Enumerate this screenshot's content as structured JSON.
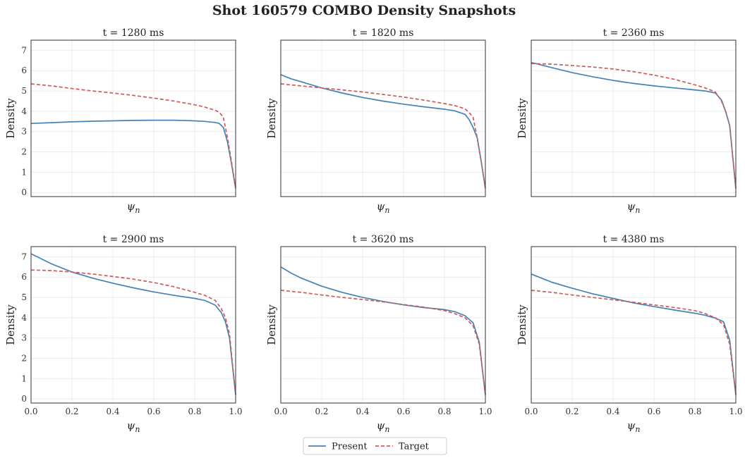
{
  "chart_data": {
    "type": "line",
    "title": "Shot 160579 COMBO Density Snapshots",
    "xlabel": "ψn",
    "ylabel": "Density",
    "xlim": [
      0.0,
      1.0
    ],
    "ylim": [
      -0.2,
      7.5
    ],
    "x_ticks": [
      "0.0",
      "0.2",
      "0.4",
      "0.6",
      "0.8",
      "1.0"
    ],
    "y_ticks": [
      "0",
      "1",
      "2",
      "3",
      "4",
      "5",
      "6",
      "7"
    ],
    "grid": true,
    "legend": {
      "placement": "bottom-center",
      "entries": [
        "Present",
        "Target"
      ]
    },
    "colors": {
      "present": "#4682b4",
      "target": "#cd5c5c"
    },
    "panels": [
      {
        "title": "t = 1280 ms",
        "series": [
          {
            "name": "Present",
            "x": [
              0,
              0.1,
              0.2,
              0.3,
              0.4,
              0.5,
              0.6,
              0.7,
              0.8,
              0.85,
              0.9,
              0.92,
              0.94,
              0.96,
              0.98,
              1.0
            ],
            "y": [
              3.4,
              3.44,
              3.48,
              3.51,
              3.53,
              3.55,
              3.56,
              3.56,
              3.53,
              3.5,
              3.45,
              3.4,
              3.2,
              2.5,
              1.4,
              0.2
            ]
          },
          {
            "name": "Target",
            "x": [
              0,
              0.1,
              0.2,
              0.3,
              0.4,
              0.5,
              0.6,
              0.7,
              0.8,
              0.85,
              0.9,
              0.92,
              0.94,
              0.96,
              0.98,
              1.0
            ],
            "y": [
              5.35,
              5.25,
              5.12,
              5.0,
              4.9,
              4.78,
              4.65,
              4.5,
              4.32,
              4.2,
              4.05,
              3.95,
              3.7,
              2.7,
              1.5,
              0.2
            ]
          }
        ]
      },
      {
        "title": "t = 1820 ms",
        "series": [
          {
            "name": "Present",
            "x": [
              0,
              0.05,
              0.1,
              0.2,
              0.3,
              0.4,
              0.5,
              0.6,
              0.7,
              0.8,
              0.85,
              0.9,
              0.92,
              0.94,
              0.96,
              0.98,
              1.0
            ],
            "y": [
              5.8,
              5.6,
              5.45,
              5.15,
              4.9,
              4.68,
              4.5,
              4.35,
              4.22,
              4.1,
              4.02,
              3.85,
              3.6,
              3.2,
              2.7,
              1.5,
              0.2
            ]
          },
          {
            "name": "Target",
            "x": [
              0,
              0.1,
              0.2,
              0.3,
              0.4,
              0.5,
              0.6,
              0.7,
              0.8,
              0.85,
              0.9,
              0.92,
              0.94,
              0.96,
              0.98,
              1.0
            ],
            "y": [
              5.35,
              5.25,
              5.15,
              5.05,
              4.95,
              4.83,
              4.7,
              4.55,
              4.38,
              4.28,
              4.12,
              3.95,
              3.7,
              2.7,
              1.5,
              0.2
            ]
          }
        ]
      },
      {
        "title": "t = 2360 ms",
        "series": [
          {
            "name": "Present",
            "x": [
              0,
              0.1,
              0.2,
              0.3,
              0.4,
              0.5,
              0.6,
              0.7,
              0.8,
              0.85,
              0.9,
              0.93,
              0.95,
              0.97,
              1.0
            ],
            "y": [
              6.4,
              6.15,
              5.9,
              5.7,
              5.52,
              5.37,
              5.25,
              5.15,
              5.05,
              5.0,
              4.9,
              4.55,
              4.0,
              3.3,
              0.2
            ]
          },
          {
            "name": "Target",
            "x": [
              0,
              0.1,
              0.2,
              0.3,
              0.4,
              0.5,
              0.6,
              0.7,
              0.8,
              0.85,
              0.9,
              0.93,
              0.95,
              0.97,
              1.0
            ],
            "y": [
              6.35,
              6.32,
              6.25,
              6.18,
              6.08,
              5.95,
              5.78,
              5.57,
              5.3,
              5.15,
              4.95,
              4.5,
              4.0,
              3.3,
              0.2
            ]
          }
        ]
      },
      {
        "title": "t = 2900 ms",
        "series": [
          {
            "name": "Present",
            "x": [
              0,
              0.1,
              0.2,
              0.3,
              0.4,
              0.5,
              0.6,
              0.7,
              0.8,
              0.85,
              0.9,
              0.93,
              0.95,
              0.97,
              1.0
            ],
            "y": [
              7.15,
              6.65,
              6.25,
              5.95,
              5.7,
              5.47,
              5.27,
              5.1,
              4.95,
              4.85,
              4.62,
              4.25,
              3.8,
              3.0,
              0.2
            ]
          },
          {
            "name": "Target",
            "x": [
              0,
              0.1,
              0.2,
              0.3,
              0.4,
              0.5,
              0.6,
              0.7,
              0.8,
              0.85,
              0.9,
              0.93,
              0.95,
              0.97,
              1.0
            ],
            "y": [
              6.35,
              6.32,
              6.25,
              6.15,
              6.03,
              5.9,
              5.73,
              5.52,
              5.25,
              5.1,
              4.85,
              4.45,
              4.0,
              3.2,
              0.2
            ]
          }
        ]
      },
      {
        "title": "t = 3620 ms",
        "series": [
          {
            "name": "Present",
            "x": [
              0,
              0.05,
              0.1,
              0.2,
              0.3,
              0.4,
              0.5,
              0.6,
              0.7,
              0.8,
              0.85,
              0.9,
              0.94,
              0.97,
              1.0
            ],
            "y": [
              6.5,
              6.2,
              5.95,
              5.55,
              5.25,
              5.0,
              4.8,
              4.63,
              4.5,
              4.4,
              4.3,
              4.1,
              3.75,
              2.8,
              0.2
            ]
          },
          {
            "name": "Target",
            "x": [
              0,
              0.1,
              0.2,
              0.3,
              0.4,
              0.5,
              0.6,
              0.7,
              0.8,
              0.85,
              0.9,
              0.94,
              0.97,
              1.0
            ],
            "y": [
              5.35,
              5.25,
              5.12,
              5.0,
              4.9,
              4.78,
              4.65,
              4.52,
              4.35,
              4.2,
              4.0,
              3.6,
              2.7,
              0.2
            ]
          }
        ]
      },
      {
        "title": "t = 4380 ms",
        "series": [
          {
            "name": "Present",
            "x": [
              0,
              0.05,
              0.1,
              0.2,
              0.3,
              0.4,
              0.5,
              0.6,
              0.7,
              0.8,
              0.85,
              0.9,
              0.94,
              0.97,
              1.0
            ],
            "y": [
              6.15,
              5.95,
              5.75,
              5.45,
              5.18,
              4.95,
              4.73,
              4.55,
              4.38,
              4.22,
              4.12,
              3.98,
              3.8,
              2.9,
              0.2
            ]
          },
          {
            "name": "Target",
            "x": [
              0,
              0.1,
              0.2,
              0.3,
              0.4,
              0.5,
              0.6,
              0.7,
              0.8,
              0.85,
              0.9,
              0.94,
              0.97,
              1.0
            ],
            "y": [
              5.35,
              5.25,
              5.12,
              5.0,
              4.88,
              4.76,
              4.63,
              4.5,
              4.35,
              4.2,
              4.0,
              3.65,
              2.7,
              0.2
            ]
          }
        ]
      }
    ]
  }
}
